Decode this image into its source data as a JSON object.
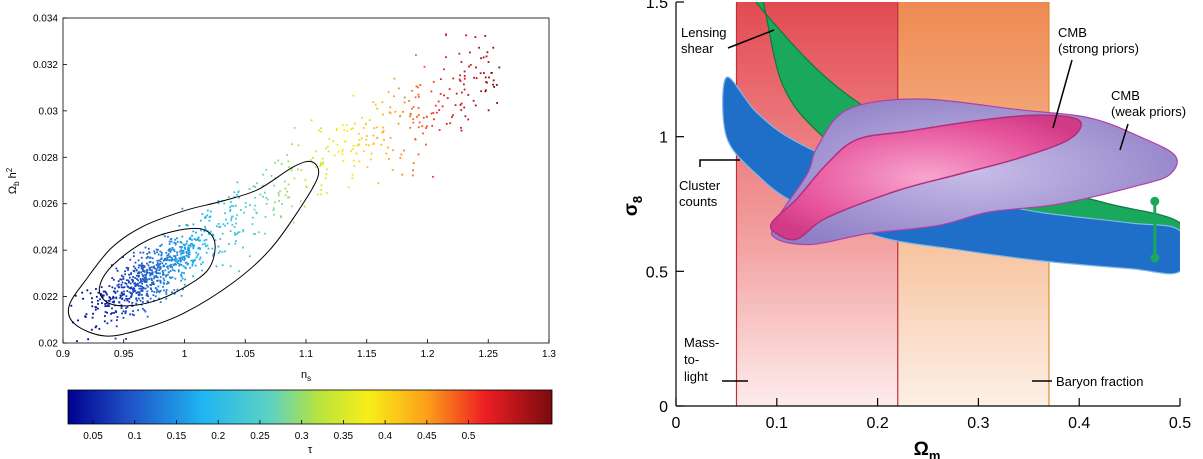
{
  "chart_data": [
    {
      "type": "scatter",
      "title": "",
      "xlabel": "n_s",
      "ylabel": "Ω_b h²",
      "xlim": [
        0.9,
        1.3
      ],
      "ylim": [
        0.02,
        0.034
      ],
      "x_ticks": [
        "0.9",
        "0.95",
        "1",
        "1.05",
        "1.1",
        "1.15",
        "1.2",
        "1.25",
        "1.3"
      ],
      "y_ticks": [
        "0.02",
        "0.022",
        "0.024",
        "0.026",
        "0.028",
        "0.03",
        "0.032",
        "0.034"
      ],
      "trend": {
        "x": [
          0.91,
          0.96,
          1.0,
          1.05,
          1.1,
          1.15,
          1.2,
          1.26
        ],
        "y": [
          0.021,
          0.0225,
          0.0238,
          0.0256,
          0.0273,
          0.0289,
          0.0302,
          0.032
        ]
      },
      "contours": [
        {
          "level": "inner",
          "points": [
            [
              0.935,
              0.0218
            ],
            [
              0.95,
              0.0216
            ],
            [
              0.975,
              0.0218
            ],
            [
              1.0,
              0.0224
            ],
            [
              1.02,
              0.0232
            ],
            [
              1.025,
              0.0243
            ],
            [
              1.015,
              0.0249
            ],
            [
              0.99,
              0.0248
            ],
            [
              0.965,
              0.0243
            ],
            [
              0.94,
              0.0233
            ],
            [
              0.93,
              0.0224
            ]
          ]
        },
        {
          "level": "outer",
          "points": [
            [
              0.91,
              0.0208
            ],
            [
              0.935,
              0.0203
            ],
            [
              0.965,
              0.0206
            ],
            [
              1.0,
              0.0213
            ],
            [
              1.04,
              0.0226
            ],
            [
              1.07,
              0.024
            ],
            [
              1.095,
              0.0258
            ],
            [
              1.11,
              0.0272
            ],
            [
              1.105,
              0.0278
            ],
            [
              1.09,
              0.0276
            ],
            [
              1.06,
              0.0266
            ],
            [
              1.03,
              0.0261
            ],
            [
              1.0,
              0.0257
            ],
            [
              0.965,
              0.025
            ],
            [
              0.94,
              0.0241
            ],
            [
              0.92,
              0.0228
            ],
            [
              0.905,
              0.0216
            ]
          ]
        }
      ],
      "colorbar": {
        "label": "τ",
        "range": [
          0.02,
          0.6
        ],
        "ticks": [
          "0.05",
          "0.1",
          "0.15",
          "0.2",
          "0.25",
          "0.3",
          "0.35",
          "0.4",
          "0.45",
          "0.5"
        ]
      }
    },
    {
      "type": "area",
      "title": "",
      "xlabel": "Ω_m",
      "ylabel": "σ_8",
      "xlim": [
        0,
        0.5
      ],
      "ylim": [
        0,
        1.5
      ],
      "x_ticks": [
        "0",
        "0.1",
        "0.2",
        "0.3",
        "0.4",
        "0.5"
      ],
      "y_ticks": [
        "0",
        "0.5",
        "1",
        "1.5"
      ],
      "bands": [
        {
          "name": "Mass-to-light",
          "xmin": 0.06,
          "xmax": 0.22,
          "color": "#e2474f"
        },
        {
          "name": "Baryon fraction",
          "xmin": 0.22,
          "xmax": 0.37,
          "color": "#ef8a4e"
        }
      ],
      "regions": [
        {
          "name": "Lensing shear",
          "color": "#1aa85c",
          "points": [
            [
              0.075,
              1.52
            ],
            [
              0.14,
              1.25
            ],
            [
              0.2,
              1.08
            ],
            [
              0.28,
              0.92
            ],
            [
              0.36,
              0.82
            ],
            [
              0.43,
              0.75
            ],
            [
              0.5,
              0.68
            ],
            [
              0.5,
              0.54
            ],
            [
              0.43,
              0.6
            ],
            [
              0.36,
              0.66
            ],
            [
              0.28,
              0.74
            ],
            [
              0.2,
              0.86
            ],
            [
              0.14,
              1.02
            ],
            [
              0.105,
              1.2
            ],
            [
              0.085,
              1.52
            ]
          ]
        },
        {
          "name": "Cluster counts",
          "color": "#1f6fc8",
          "points": [
            [
              0.05,
              1.22
            ],
            [
              0.08,
              1.09
            ],
            [
              0.12,
              0.98
            ],
            [
              0.2,
              0.85
            ],
            [
              0.28,
              0.78
            ],
            [
              0.36,
              0.72
            ],
            [
              0.45,
              0.68
            ],
            [
              0.5,
              0.65
            ],
            [
              0.5,
              0.5
            ],
            [
              0.45,
              0.51
            ],
            [
              0.36,
              0.54
            ],
            [
              0.28,
              0.58
            ],
            [
              0.2,
              0.63
            ],
            [
              0.12,
              0.75
            ],
            [
              0.08,
              0.86
            ],
            [
              0.05,
              1.0
            ]
          ]
        },
        {
          "name": "CMB (weak priors)",
          "color": "#9b8ccc",
          "points": [
            [
              0.098,
              0.68
            ],
            [
              0.13,
              0.86
            ],
            [
              0.14,
              0.96
            ],
            [
              0.17,
              1.1
            ],
            [
              0.24,
              1.14
            ],
            [
              0.34,
              1.1
            ],
            [
              0.41,
              1.07
            ],
            [
              0.46,
              1.0
            ],
            [
              0.495,
              0.93
            ],
            [
              0.49,
              0.86
            ],
            [
              0.46,
              0.82
            ],
            [
              0.38,
              0.75
            ],
            [
              0.31,
              0.72
            ],
            [
              0.26,
              0.67
            ],
            [
              0.19,
              0.64
            ],
            [
              0.135,
              0.6
            ],
            [
              0.1,
              0.62
            ]
          ]
        },
        {
          "name": "CMB (strong priors)",
          "color": "#ec5fa2",
          "points": [
            [
              0.095,
              0.68
            ],
            [
              0.12,
              0.77
            ],
            [
              0.15,
              0.9
            ],
            [
              0.18,
              0.99
            ],
            [
              0.23,
              1.02
            ],
            [
              0.3,
              1.06
            ],
            [
              0.36,
              1.08
            ],
            [
              0.4,
              1.06
            ],
            [
              0.39,
              0.99
            ],
            [
              0.34,
              0.92
            ],
            [
              0.28,
              0.86
            ],
            [
              0.22,
              0.8
            ],
            [
              0.15,
              0.7
            ],
            [
              0.12,
              0.62
            ],
            [
              0.1,
              0.64
            ]
          ]
        }
      ],
      "error_bars": [
        {
          "x": 0.445,
          "ymin": 0.54,
          "ymax": 0.64,
          "color": "#1f6fc8"
        },
        {
          "x": 0.475,
          "ymin": 0.55,
          "ymax": 0.76,
          "color": "#1aa85c"
        }
      ],
      "annotations": [
        {
          "text_lines": [
            "Lensing",
            "shear"
          ]
        },
        {
          "text_lines": [
            "CMB",
            "(strong priors)"
          ]
        },
        {
          "text_lines": [
            "CMB",
            "(weak priors)"
          ]
        },
        {
          "text_lines": [
            "Cluster",
            "counts"
          ]
        },
        {
          "text_lines": [
            "Mass-",
            "to-",
            "light"
          ]
        },
        {
          "text_lines": [
            "Baryon fraction"
          ]
        }
      ]
    }
  ]
}
